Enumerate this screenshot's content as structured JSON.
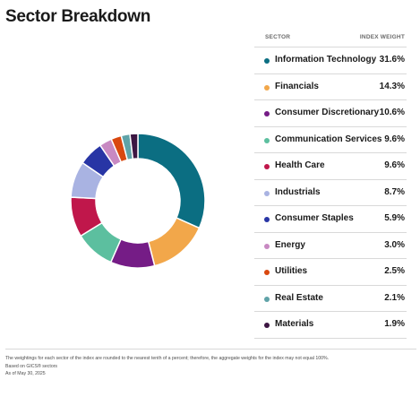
{
  "title": "Sector Breakdown",
  "table": {
    "col_sector": "SECTOR",
    "col_weight": "INDEX WEIGHT"
  },
  "chart_data": {
    "type": "pie",
    "variant": "donut",
    "categories": [
      "Information Technology",
      "Financials",
      "Consumer Discretionary",
      "Communication Services",
      "Health Care",
      "Industrials",
      "Consumer Staples",
      "Energy",
      "Utilities",
      "Real Estate",
      "Materials"
    ],
    "values": [
      31.6,
      14.3,
      10.6,
      9.6,
      9.6,
      8.7,
      5.9,
      3.0,
      2.5,
      2.1,
      1.9
    ],
    "labels": [
      "31.6%",
      "14.3%",
      "10.6%",
      "9.6%",
      "9.6%",
      "8.7%",
      "5.9%",
      "3.0%",
      "2.5%",
      "2.1%",
      "1.9%"
    ],
    "colors": [
      "#0b6e82",
      "#f2a74a",
      "#751c86",
      "#5cbf9f",
      "#c0174b",
      "#a9b3e2",
      "#2835a5",
      "#c889c2",
      "#d9480f",
      "#5fa3a8",
      "#3c1642"
    ],
    "legend_position": "right"
  },
  "footnotes": [
    "The weightings for each sector of the index are rounded to the nearest tenth of a percent; therefore, the aggregate weights for the index may not equal 100%.",
    "Based on GICS® sectors",
    "As of May 30, 2025"
  ]
}
